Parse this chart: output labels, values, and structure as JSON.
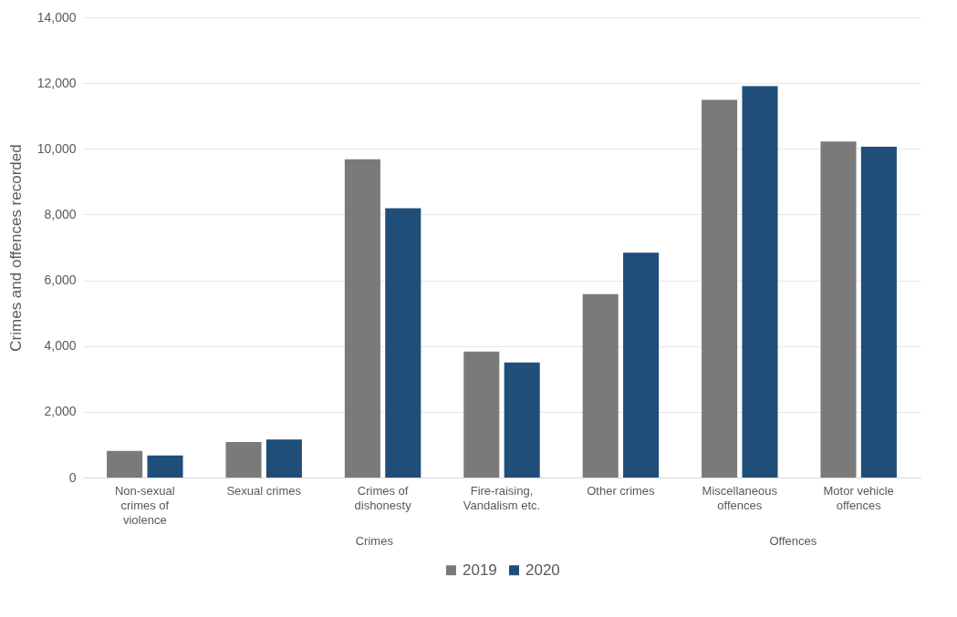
{
  "chart_data": {
    "type": "bar",
    "ylabel": "Crimes and offences recorded",
    "categories": [
      "Non-sexual crimes of violence",
      "Sexual crimes",
      "Crimes of dishonesty",
      "Fire-raising, Vandalism etc.",
      "Other crimes",
      "Miscellaneous offences",
      "Motor vehicle offences"
    ],
    "series": [
      {
        "name": "2019",
        "color": "#7a7a7a",
        "values": [
          810,
          1080,
          9680,
          3830,
          5580,
          11490,
          10220
        ]
      },
      {
        "name": "2020",
        "color": "#1f4e79",
        "values": [
          670,
          1160,
          8190,
          3500,
          6840,
          11910,
          10060
        ]
      }
    ],
    "ylim": [
      0,
      14000
    ],
    "yticks": [
      0,
      {
        "value": 2000,
        "label": "2,000"
      },
      {
        "value": 4000,
        "label": "4,000"
      },
      {
        "value": 6000,
        "label": "6,000"
      },
      {
        "value": 8000,
        "label": "8,000"
      },
      {
        "value": 10000,
        "label": "10,000"
      },
      {
        "value": 12000,
        "label": "12,000"
      },
      {
        "value": 14000,
        "label": "14,000"
      }
    ],
    "grid": "y",
    "legend": "bottom",
    "annotations": [
      "Crimes",
      "Offences"
    ]
  }
}
